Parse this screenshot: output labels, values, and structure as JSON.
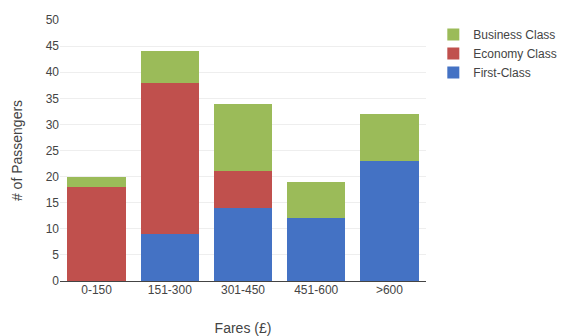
{
  "chart_data": {
    "type": "bar",
    "stacked": true,
    "categories": [
      "0-150",
      "151-300",
      "301-450",
      "451-600",
      ">600"
    ],
    "series": [
      {
        "name": "First-Class",
        "color": "#4472C4",
        "values": [
          0,
          9,
          14,
          12,
          23
        ]
      },
      {
        "name": "Economy Class",
        "color": "#C0504D",
        "values": [
          18,
          29,
          7,
          0,
          0
        ]
      },
      {
        "name": "Business Class",
        "color": "#9BBB59",
        "values": [
          2,
          6,
          13,
          7,
          9
        ]
      }
    ],
    "xlabel": "Fares (£)",
    "ylabel": "# of Passengers",
    "ylim": [
      0,
      50
    ],
    "yticks": [
      0,
      5,
      10,
      15,
      20,
      25,
      30,
      35,
      40,
      45,
      50
    ],
    "grid": true,
    "legend": "right"
  }
}
